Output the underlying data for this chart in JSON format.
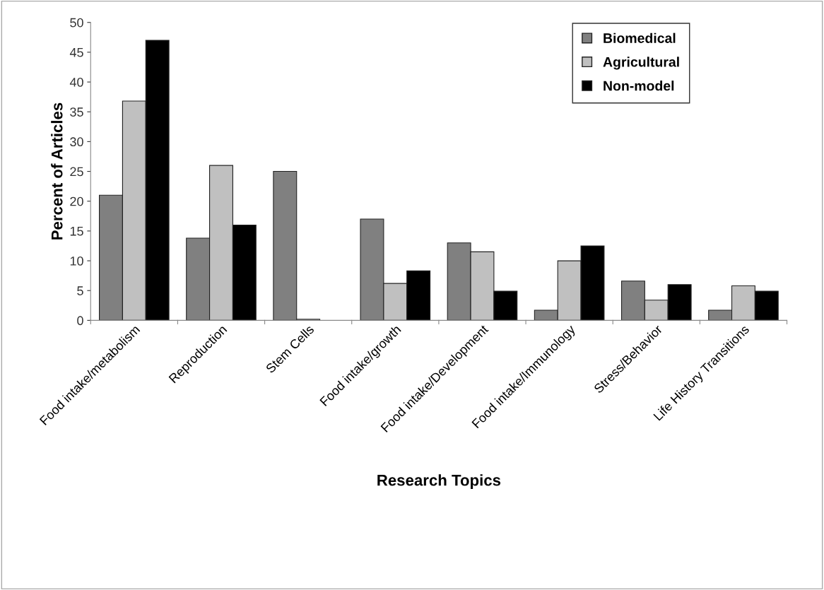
{
  "chart_data": {
    "type": "bar",
    "xlabel": "Research Topics",
    "ylabel": "Percent of Articles",
    "categories": [
      "Food intake/metabolism",
      "Reproduction",
      "Stem Cells",
      "Food intake/growth",
      "Food intake/Development",
      "Food intake/Immunology",
      "Stress/Behavior",
      "Life History Transitions"
    ],
    "series": [
      {
        "name": "Biomedical",
        "color": "#808080",
        "values": [
          21,
          13.8,
          25,
          17,
          13,
          1.7,
          6.6,
          1.7
        ]
      },
      {
        "name": "Agricultural",
        "color": "#c0c0c0",
        "values": [
          36.8,
          26,
          0.2,
          6.2,
          11.5,
          10,
          3.4,
          5.8
        ]
      },
      {
        "name": "Non-model",
        "color": "#000000",
        "values": [
          47,
          16,
          null,
          8.3,
          4.9,
          12.5,
          6,
          4.9
        ]
      }
    ],
    "ylim": [
      0,
      50
    ],
    "yticks": [
      0,
      5,
      10,
      15,
      20,
      25,
      30,
      35,
      40,
      45,
      50
    ],
    "grid": false,
    "legend": "top right"
  }
}
